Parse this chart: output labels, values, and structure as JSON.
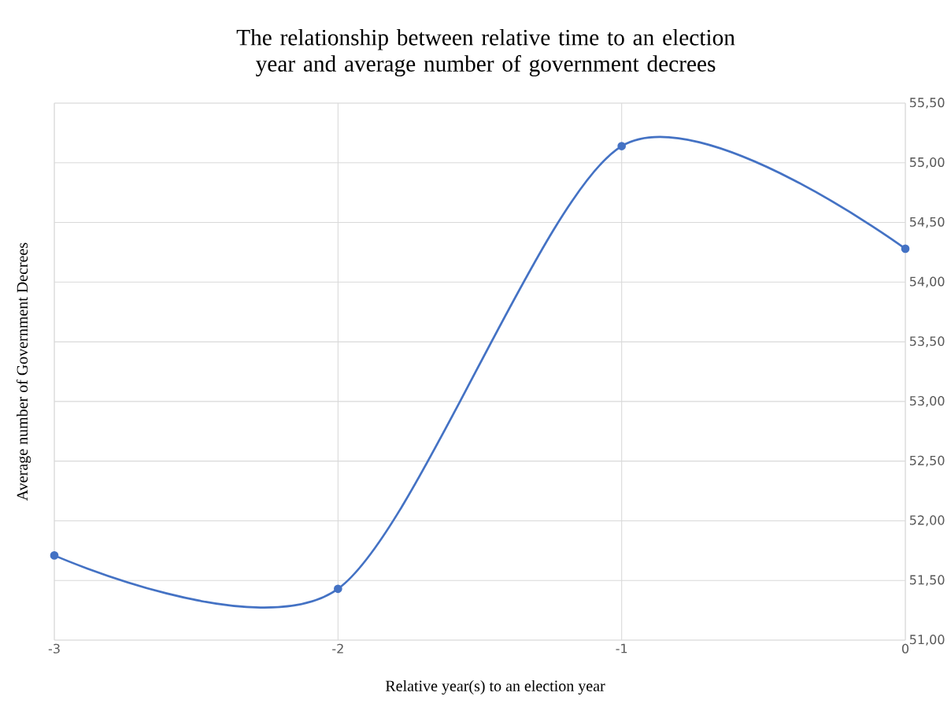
{
  "chart_data": {
    "type": "line",
    "title": "The relationship between relative time to an election year and average number of government decrees",
    "xlabel": "Relative year(s) to an election year",
    "ylabel": "Average number of Government Decrees",
    "x": [
      -3,
      -2,
      -1,
      0
    ],
    "series": [
      {
        "color": "#4472c4",
        "values": [
          51.71,
          51.43,
          55.14,
          54.28
        ]
      }
    ],
    "xlim": [
      -3,
      0
    ],
    "xticks": [
      -3,
      -2,
      -1,
      0
    ],
    "ylim": [
      51,
      55.5
    ],
    "yticks": [
      {
        "value": 51,
        "label": "51,00"
      },
      {
        "value": 51.5,
        "label": "51,50"
      },
      {
        "value": 52,
        "label": "52,00"
      },
      {
        "value": 52.5,
        "label": "52,50"
      },
      {
        "value": 53,
        "label": "53,00"
      },
      {
        "value": 53.5,
        "label": "53,50"
      },
      {
        "value": 54,
        "label": "54,00"
      },
      {
        "value": 54.5,
        "label": "54,50"
      },
      {
        "value": 55,
        "label": "55,00"
      },
      {
        "value": 55.5,
        "label": "55,50"
      }
    ],
    "grid": true,
    "marker": "circle",
    "line_style": "solid"
  }
}
